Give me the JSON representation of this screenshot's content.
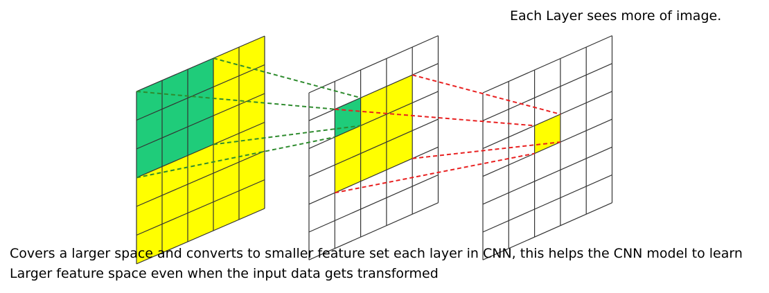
{
  "title": "Each Layer sees more of image.",
  "caption": {
    "line1": "Covers a larger space and converts to smaller feature set each layer in CNN, this helps the CNN model to learn",
    "line2": "Larger feature space even when the input data gets transformed"
  },
  "colors": {
    "receptive_field_green": "#1fcc7a",
    "receptive_field_yellow": "#ffff00",
    "grid_line": "#333333",
    "green_dashes": "#2e8b2e",
    "red_dashes": "#e82020"
  },
  "layers": [
    {
      "name": "input-layer",
      "rows": 6,
      "cols": 5
    },
    {
      "name": "hidden-layer",
      "rows": 6,
      "cols": 5
    },
    {
      "name": "output-layer",
      "rows": 6,
      "cols": 5
    }
  ]
}
